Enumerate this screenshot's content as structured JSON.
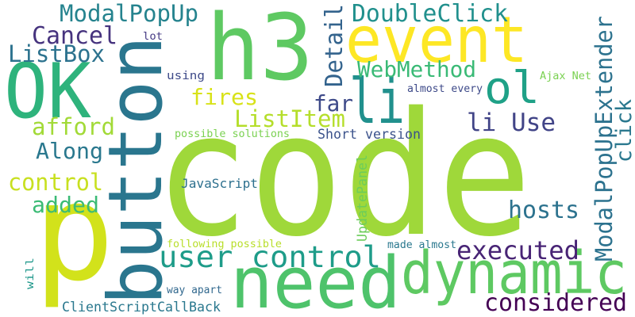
{
  "words": [
    "code",
    "button",
    "p",
    "need",
    "dynamic",
    "h3",
    "event",
    "OK",
    "li",
    "ol",
    "ModalPopUp",
    "Cancel",
    "ListBox",
    "DoubleClick",
    "Detail",
    "ModalPopUpExtender",
    "click",
    "WebMethod",
    "far",
    "li Use",
    "fires",
    "ListItem",
    "afford",
    "Along",
    "control",
    "added",
    "user control",
    "executed",
    "hosts",
    "considered",
    "UpdatePanel",
    "JavaScript",
    "Short version",
    "possible solutions",
    "following possible",
    "way apart",
    "ClientScriptCallBack",
    "made almost",
    "almost every",
    "Ajax Net",
    "lot",
    "using",
    "will"
  ]
}
